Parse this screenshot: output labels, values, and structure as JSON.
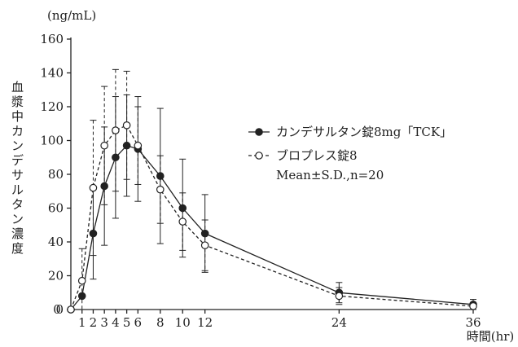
{
  "chart_data": {
    "type": "line",
    "unit_label": "(ng/mL)",
    "ylabel": "血漿中カンデサルタン濃度",
    "xlabel": "時間(hr)",
    "ylim": [
      0,
      160
    ],
    "yticks": [
      0,
      20,
      40,
      60,
      80,
      100,
      120,
      140,
      160
    ],
    "xlim": [
      0,
      36
    ],
    "xticks": [
      1,
      2,
      3,
      4,
      5,
      6,
      8,
      10,
      12,
      24,
      36
    ],
    "x_zero_label": "0",
    "grid": false,
    "legend_position": "right",
    "legend_note": "Mean±S.D.,n=20",
    "series": [
      {
        "name": "カンデサルタン錠8mg「TCK」",
        "style": "solid",
        "marker": "filled-circle",
        "color": "#222222",
        "x": [
          0,
          1,
          2,
          3,
          4,
          5,
          6,
          8,
          10,
          12,
          24,
          36
        ],
        "y": [
          0,
          8,
          45,
          73,
          90,
          97,
          95,
          79,
          60,
          45,
          10,
          3
        ],
        "sd": [
          0,
          0,
          27,
          35,
          36,
          30,
          31,
          40,
          29,
          23,
          6,
          3
        ]
      },
      {
        "name": "ブロプレス錠8",
        "style": "dashed",
        "marker": "open-circle",
        "color": "#222222",
        "x": [
          0,
          1,
          2,
          3,
          4,
          5,
          6,
          8,
          10,
          12,
          24,
          36
        ],
        "y": [
          0,
          17,
          72,
          97,
          106,
          109,
          97,
          71,
          52,
          38,
          8,
          2
        ],
        "sd": [
          0,
          19,
          40,
          35,
          36,
          32,
          23,
          20,
          17,
          15,
          5,
          2
        ]
      }
    ]
  }
}
